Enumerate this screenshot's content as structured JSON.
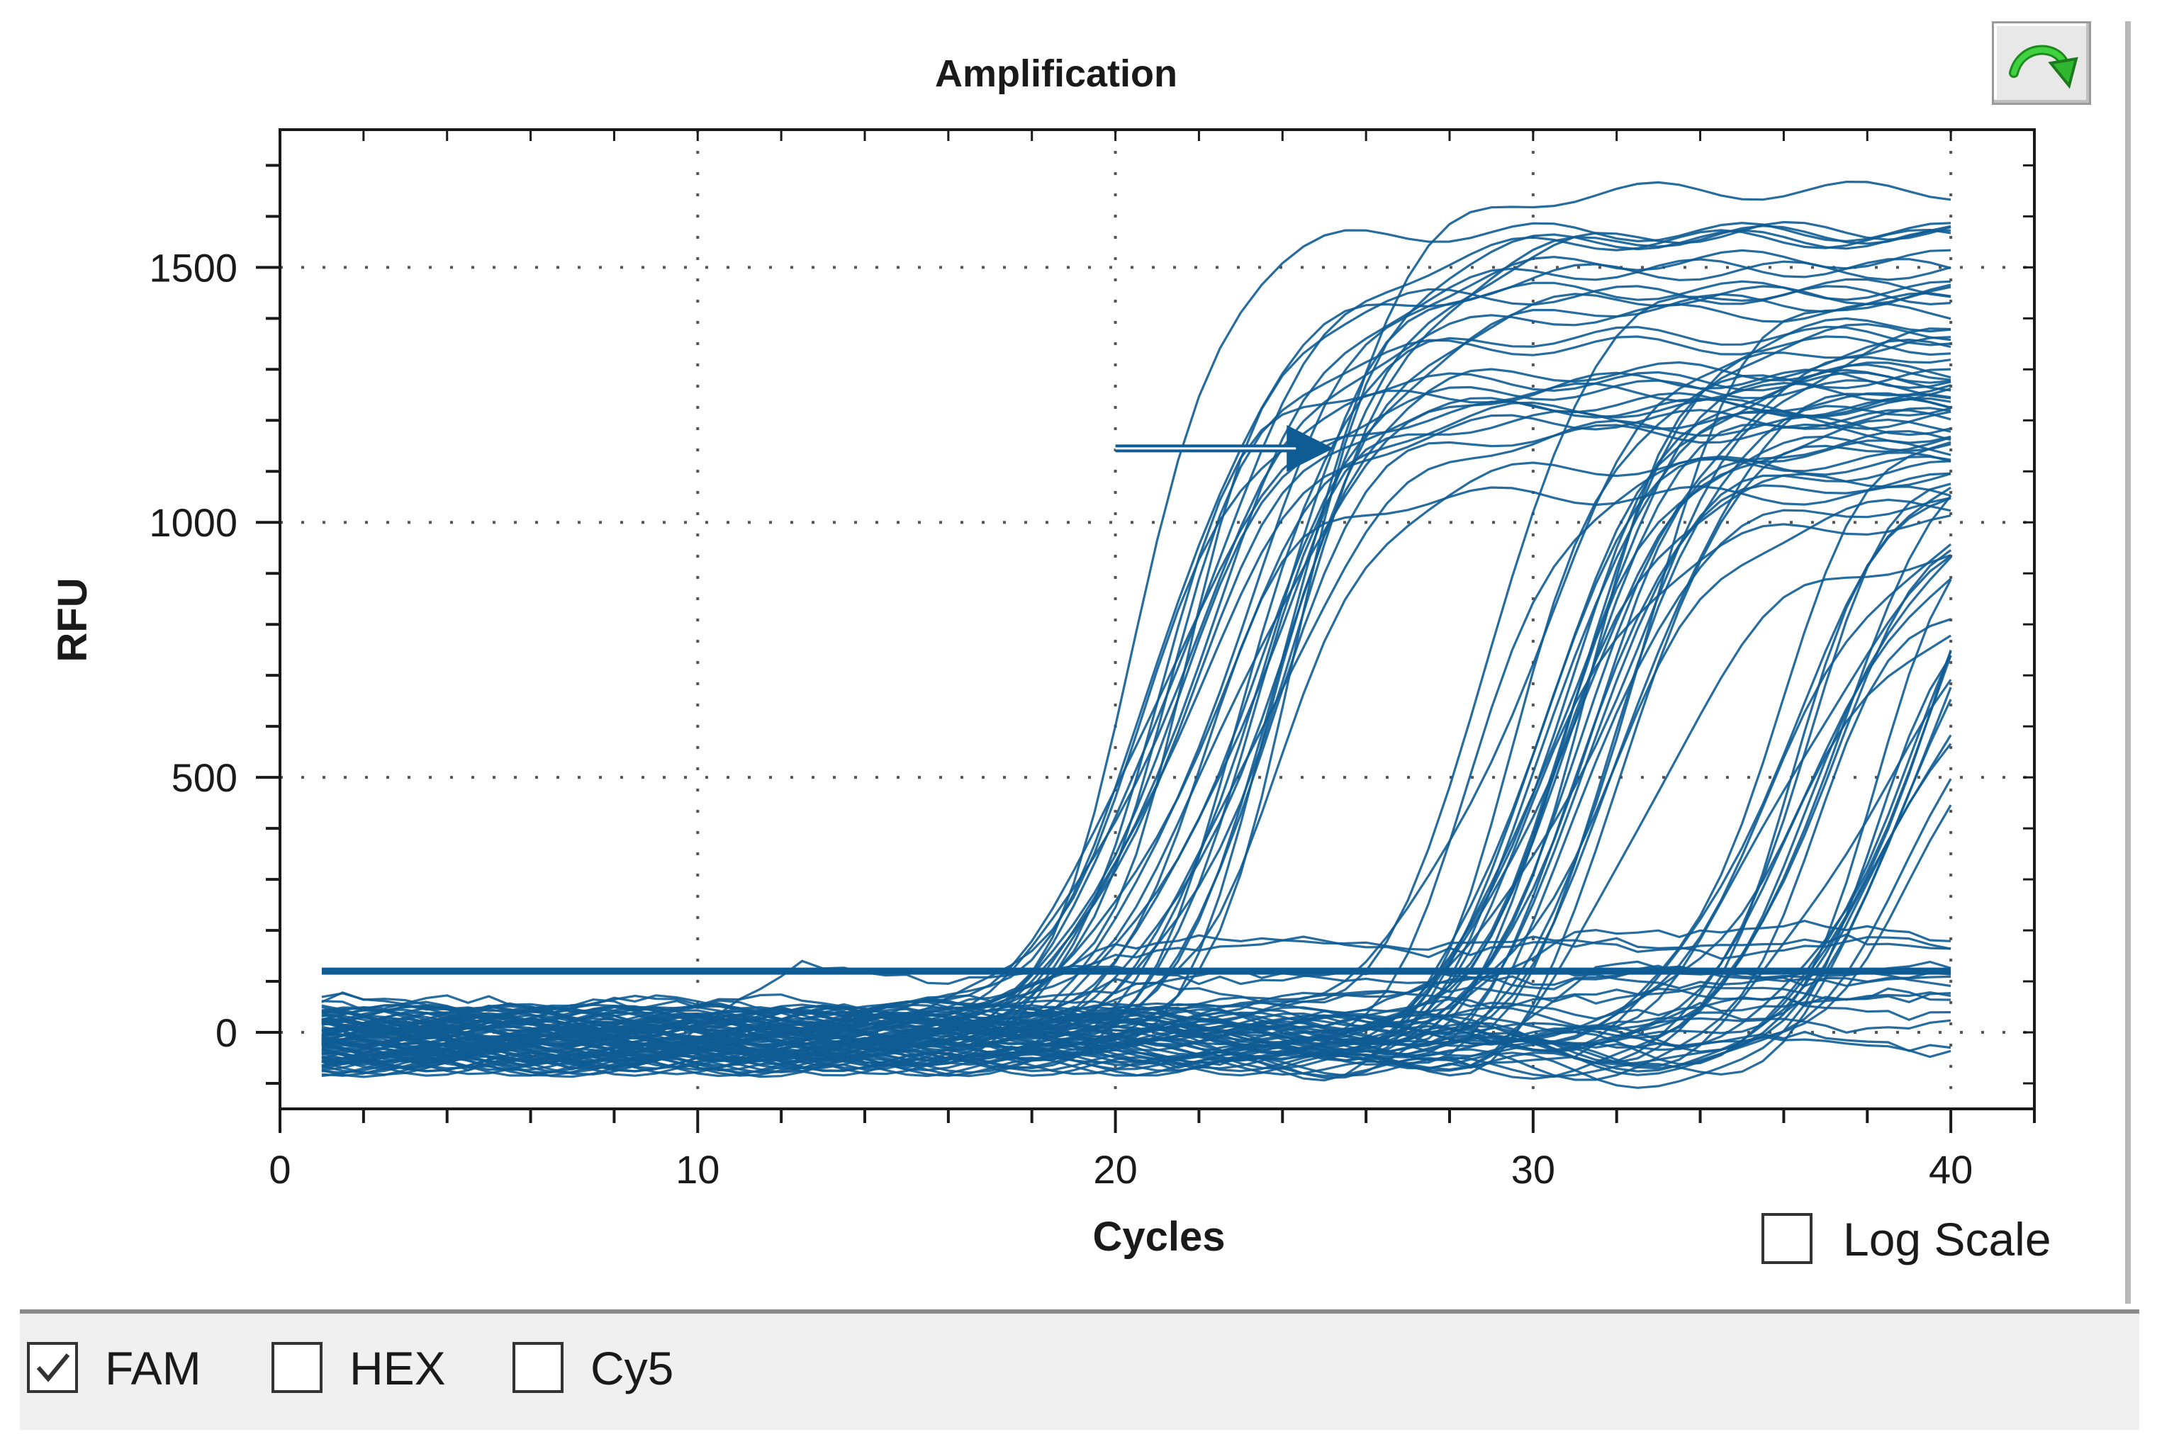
{
  "chart_data": {
    "type": "line",
    "title": "Amplification",
    "xlabel": "Cycles",
    "ylabel": "RFU",
    "xlim": [
      0,
      42
    ],
    "ylim": [
      -150,
      1770
    ],
    "x_ticks": [
      0,
      10,
      20,
      30,
      40
    ],
    "y_ticks": [
      0,
      500,
      1000,
      1500
    ],
    "grid": true,
    "grid_style": "dotted",
    "line_color": "#0f5c94",
    "threshold": 120,
    "threshold_x_range": [
      1,
      40
    ],
    "annotation_arrow": {
      "from": [
        20,
        1145
      ],
      "to": [
        25,
        1145
      ]
    },
    "x_cycles": [
      1,
      40
    ],
    "curve_groups": [
      {
        "group": "early",
        "midpoint_cycle_range": [
          20.5,
          24.5
        ],
        "plateau_rfu_range": [
          1100,
          1680
        ],
        "count": 30
      },
      {
        "group": "middle",
        "midpoint_cycle_range": [
          28,
          33
        ],
        "plateau_rfu_range": [
          1000,
          1450
        ],
        "count": 28
      },
      {
        "group": "late",
        "midpoint_cycle_range": [
          35.5,
          39.5
        ],
        "plateau_rfu_range": [
          800,
          1300
        ],
        "count": 24
      },
      {
        "group": "flat",
        "rfu_range": [
          -120,
          280
        ],
        "count": 14
      }
    ]
  },
  "controls": {
    "log_scale_label": "Log Scale",
    "log_scale_checked": false
  },
  "channels": [
    {
      "name": "FAM",
      "checked": true
    },
    {
      "name": "HEX",
      "checked": false
    },
    {
      "name": "Cy5",
      "checked": false
    }
  ],
  "export_icon": "green-curved-arrow-icon"
}
